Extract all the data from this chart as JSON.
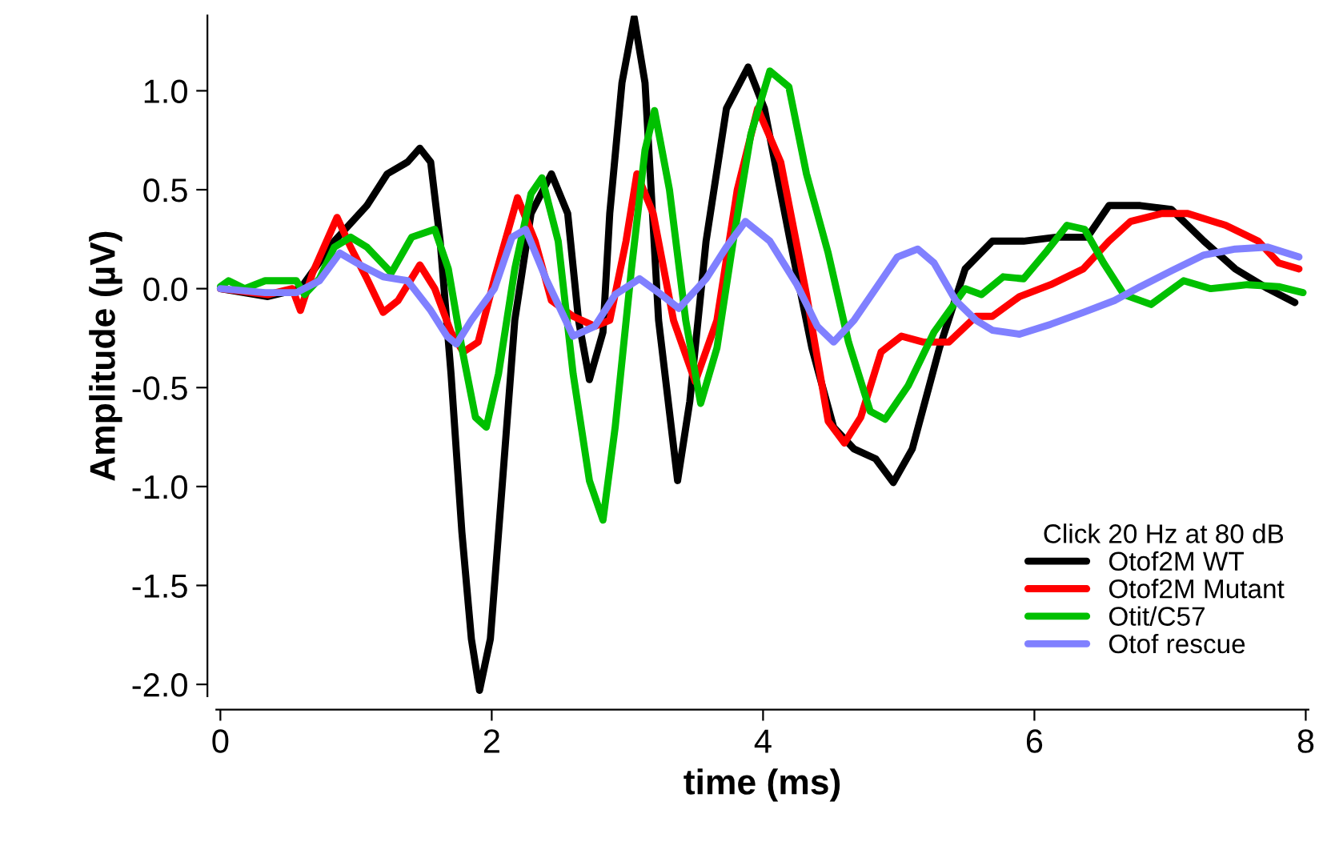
{
  "chart_data": {
    "type": "line",
    "xlabel": "time (ms)",
    "ylabel": "Amplitude (µV)",
    "legend_title": "Click 20 Hz at 80 dB",
    "legend": "bottom right",
    "grid": false,
    "line_style": "solid",
    "xlim": [
      -0.03,
      8.02
    ],
    "ylim": [
      -2.06,
      1.38
    ],
    "xticks": [
      0,
      2,
      4,
      6,
      8
    ],
    "yticks": [
      {
        "value": -2,
        "label": "-2.0"
      },
      -1.5,
      {
        "value": -1,
        "label": "-1.0"
      },
      -0.5,
      {
        "value": 0,
        "label": "0.0"
      },
      0.5,
      {
        "value": 1,
        "label": "1.0"
      }
    ],
    "series": [
      {
        "name": "Otof2M WT",
        "color": "#000000",
        "x": [
          0.0,
          0.35,
          0.59,
          0.84,
          1.08,
          1.23,
          1.38,
          1.47,
          1.55,
          1.62,
          1.7,
          1.78,
          1.85,
          1.91,
          1.99,
          2.08,
          2.17,
          2.29,
          2.44,
          2.56,
          2.64,
          2.72,
          2.82,
          2.87,
          2.96,
          3.05,
          3.13,
          3.23,
          3.37,
          3.46,
          3.58,
          3.73,
          3.89,
          4.01,
          4.2,
          4.36,
          4.52,
          4.67,
          4.83,
          4.96,
          5.1,
          5.3,
          5.49,
          5.69,
          5.92,
          6.16,
          6.39,
          6.55,
          6.78,
          7.01,
          7.25,
          7.48,
          7.72,
          7.92
        ],
        "values": [
          0.0,
          -0.04,
          0.0,
          0.24,
          0.42,
          0.58,
          0.64,
          0.71,
          0.64,
          0.24,
          -0.43,
          -1.23,
          -1.77,
          -2.03,
          -1.77,
          -0.97,
          -0.16,
          0.38,
          0.58,
          0.38,
          -0.16,
          -0.46,
          -0.22,
          0.38,
          1.04,
          1.37,
          1.04,
          -0.16,
          -0.97,
          -0.57,
          0.24,
          0.91,
          1.12,
          0.91,
          0.24,
          -0.3,
          -0.7,
          -0.81,
          -0.86,
          -0.98,
          -0.81,
          -0.3,
          0.1,
          0.24,
          0.24,
          0.26,
          0.26,
          0.42,
          0.42,
          0.4,
          0.24,
          0.1,
          0.0,
          -0.07
        ]
      },
      {
        "name": "Otof2M Mutant",
        "color": "#ff0000",
        "x": [
          0.0,
          0.35,
          0.53,
          0.59,
          0.68,
          0.86,
          0.96,
          1.08,
          1.2,
          1.31,
          1.47,
          1.58,
          1.7,
          1.79,
          1.9,
          2.02,
          2.19,
          2.32,
          2.44,
          2.6,
          2.76,
          2.87,
          2.99,
          3.07,
          3.19,
          3.34,
          3.5,
          3.66,
          3.81,
          3.96,
          4.13,
          4.32,
          4.48,
          4.6,
          4.72,
          4.87,
          5.02,
          5.18,
          5.37,
          5.57,
          5.69,
          5.89,
          6.12,
          6.36,
          6.55,
          6.71,
          6.94,
          7.13,
          7.41,
          7.65,
          7.8,
          7.95
        ],
        "values": [
          0.0,
          -0.03,
          0.0,
          -0.11,
          0.08,
          0.36,
          0.21,
          0.05,
          -0.12,
          -0.06,
          0.12,
          0.0,
          -0.22,
          -0.32,
          -0.27,
          0.05,
          0.46,
          0.24,
          -0.06,
          -0.14,
          -0.19,
          -0.16,
          0.24,
          0.58,
          0.38,
          -0.16,
          -0.47,
          -0.16,
          0.5,
          0.91,
          0.64,
          -0.03,
          -0.67,
          -0.78,
          -0.65,
          -0.32,
          -0.24,
          -0.27,
          -0.27,
          -0.14,
          -0.14,
          -0.04,
          0.02,
          0.1,
          0.24,
          0.34,
          0.38,
          0.38,
          0.32,
          0.24,
          0.13,
          0.1
        ]
      },
      {
        "name": "Otit/C57",
        "color": "#00c000",
        "x": [
          0.0,
          0.06,
          0.18,
          0.33,
          0.56,
          0.62,
          0.73,
          0.84,
          0.96,
          1.08,
          1.26,
          1.41,
          1.58,
          1.68,
          1.78,
          1.88,
          1.96,
          2.05,
          2.17,
          2.29,
          2.37,
          2.49,
          2.6,
          2.72,
          2.82,
          2.91,
          3.03,
          3.13,
          3.2,
          3.31,
          3.43,
          3.54,
          3.66,
          3.78,
          3.91,
          4.05,
          4.19,
          4.32,
          4.48,
          4.63,
          4.79,
          4.9,
          5.07,
          5.26,
          5.49,
          5.61,
          5.77,
          5.92,
          6.08,
          6.24,
          6.37,
          6.51,
          6.66,
          6.86,
          7.1,
          7.3,
          7.57,
          7.8,
          7.98
        ],
        "values": [
          0.01,
          0.04,
          0.0,
          0.04,
          0.04,
          -0.03,
          0.05,
          0.21,
          0.26,
          0.21,
          0.08,
          0.26,
          0.3,
          0.1,
          -0.3,
          -0.65,
          -0.7,
          -0.43,
          0.1,
          0.48,
          0.56,
          0.24,
          -0.43,
          -0.97,
          -1.17,
          -0.7,
          0.1,
          0.7,
          0.9,
          0.5,
          -0.16,
          -0.58,
          -0.3,
          0.24,
          0.78,
          1.1,
          1.02,
          0.58,
          0.18,
          -0.27,
          -0.62,
          -0.66,
          -0.49,
          -0.22,
          0.0,
          -0.03,
          0.06,
          0.05,
          0.18,
          0.32,
          0.3,
          0.13,
          -0.03,
          -0.08,
          0.04,
          0.0,
          0.02,
          0.01,
          -0.02
        ]
      },
      {
        "name": "Otof rescue",
        "color": "#8080ff",
        "x": [
          0.0,
          0.33,
          0.56,
          0.73,
          0.88,
          1.03,
          1.2,
          1.38,
          1.55,
          1.67,
          1.74,
          1.85,
          2.02,
          2.15,
          2.25,
          2.4,
          2.6,
          2.76,
          2.91,
          3.09,
          3.23,
          3.38,
          3.58,
          3.73,
          3.87,
          4.05,
          4.25,
          4.4,
          4.52,
          4.67,
          4.83,
          4.99,
          5.14,
          5.26,
          5.42,
          5.57,
          5.69,
          5.89,
          6.12,
          6.36,
          6.59,
          6.78,
          7.01,
          7.25,
          7.48,
          7.72,
          7.95
        ],
        "values": [
          0.0,
          -0.02,
          -0.02,
          0.04,
          0.18,
          0.12,
          0.06,
          0.04,
          -0.11,
          -0.24,
          -0.28,
          -0.16,
          0.0,
          0.26,
          0.3,
          0.05,
          -0.24,
          -0.19,
          -0.03,
          0.05,
          -0.02,
          -0.1,
          0.05,
          0.21,
          0.34,
          0.24,
          0.02,
          -0.19,
          -0.27,
          -0.16,
          0.0,
          0.16,
          0.2,
          0.13,
          -0.06,
          -0.16,
          -0.21,
          -0.23,
          -0.18,
          -0.12,
          -0.06,
          0.01,
          0.09,
          0.17,
          0.2,
          0.21,
          0.16
        ]
      }
    ]
  }
}
